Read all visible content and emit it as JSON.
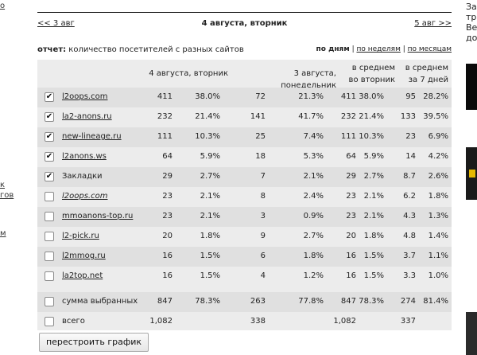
{
  "left_fragments": [
    "о",
    "к",
    "гов",
    "м"
  ],
  "right_fragments": [
    "За",
    "тр",
    "Ве",
    "до"
  ],
  "nav": {
    "prev": "<< 3 авг",
    "current": "4 августа, вторник",
    "next": "5 авг >>"
  },
  "report": {
    "label": "отчет:",
    "text": "количество посетителей с разных сайтов"
  },
  "periods": {
    "days": "по дням",
    "sep1": " | ",
    "weeks": "по неделям",
    "sep2": " | ",
    "months": "по месяцам"
  },
  "columns": {
    "today": "4 августа, вторник",
    "yesterday": "3 августа, понедельник",
    "avg_weekday_1": "в среднем",
    "avg_weekday_2": "во вторник",
    "avg_7d_1": "в среднем",
    "avg_7d_2": "за 7 дней"
  },
  "rows": [
    {
      "checked": "✔",
      "name": "l2oops.com",
      "c1": "411",
      "p1": "38.0%",
      "c2": "72",
      "p2": "21.3%",
      "c3": "411",
      "p3": "38.0%",
      "c4": "95",
      "p4": "28.2%"
    },
    {
      "checked": "✔",
      "name": "la2-anons.ru",
      "c1": "232",
      "p1": "21.4%",
      "c2": "141",
      "p2": "41.7%",
      "c3": "232",
      "p3": "21.4%",
      "c4": "133",
      "p4": "39.5%"
    },
    {
      "checked": "✔",
      "name": "new-lineage.ru",
      "c1": "111",
      "p1": "10.3%",
      "c2": "25",
      "p2": "7.4%",
      "c3": "111",
      "p3": "10.3%",
      "c4": "23",
      "p4": "6.9%"
    },
    {
      "checked": "✔",
      "name": "l2anons.ws",
      "c1": "64",
      "p1": "5.9%",
      "c2": "18",
      "p2": "5.3%",
      "c3": "64",
      "p3": "5.9%",
      "c4": "14",
      "p4": "4.2%"
    },
    {
      "checked": "✔",
      "name": "Закладки",
      "c1": "29",
      "p1": "2.7%",
      "c2": "7",
      "p2": "2.1%",
      "c3": "29",
      "p3": "2.7%",
      "c4": "8.7",
      "p4": "2.6%"
    },
    {
      "checked": "",
      "name": "l2oops.com",
      "c1": "23",
      "p1": "2.1%",
      "c2": "8",
      "p2": "2.4%",
      "c3": "23",
      "p3": "2.1%",
      "c4": "6.2",
      "p4": "1.8%"
    },
    {
      "checked": "",
      "name": "mmoanons-top.ru",
      "c1": "23",
      "p1": "2.1%",
      "c2": "3",
      "p2": "0.9%",
      "c3": "23",
      "p3": "2.1%",
      "c4": "4.3",
      "p4": "1.3%"
    },
    {
      "checked": "",
      "name": "l2-pick.ru",
      "c1": "20",
      "p1": "1.8%",
      "c2": "9",
      "p2": "2.7%",
      "c3": "20",
      "p3": "1.8%",
      "c4": "4.8",
      "p4": "1.4%"
    },
    {
      "checked": "",
      "name": "l2mmog.ru",
      "c1": "16",
      "p1": "1.5%",
      "c2": "6",
      "p2": "1.8%",
      "c3": "16",
      "p3": "1.5%",
      "c4": "3.7",
      "p4": "1.1%"
    },
    {
      "checked": "",
      "name": "la2top.net",
      "c1": "16",
      "p1": "1.5%",
      "c2": "4",
      "p2": "1.2%",
      "c3": "16",
      "p3": "1.5%",
      "c4": "3.3",
      "p4": "1.0%"
    }
  ],
  "summary": {
    "checked": "",
    "name": "сумма выбранных",
    "c1": "847",
    "p1": "78.3%",
    "c2": "263",
    "p2": "77.8%",
    "c3": "847",
    "p3": "78.3%",
    "c4": "274",
    "p4": "81.4%"
  },
  "total": {
    "checked": "",
    "name": "всего",
    "c1": "1,082",
    "c2": "338",
    "c3": "1,082",
    "c4": "337"
  },
  "rebuild_button": "перестроить график"
}
